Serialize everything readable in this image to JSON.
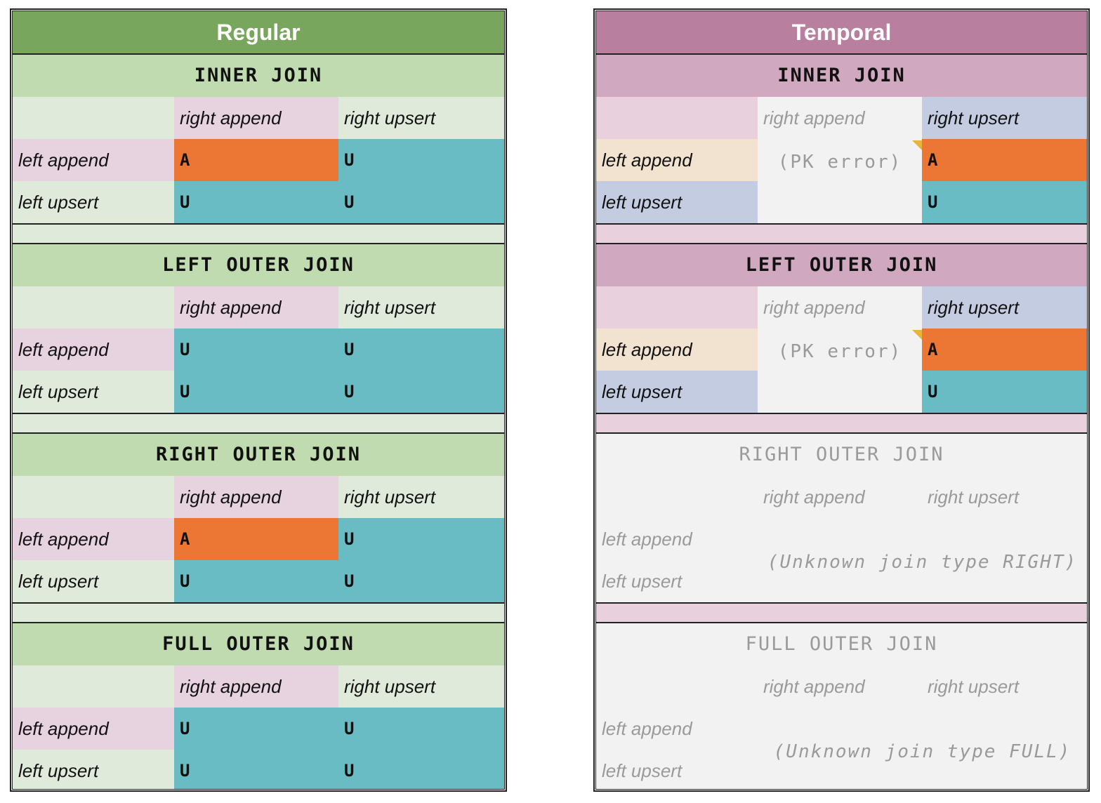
{
  "colors": {
    "regular_title": "#78a65c",
    "regular_section": "#c0dbb0",
    "regular_light": "#dfeadb",
    "pink": "#e6d3df",
    "orange": "#ec7633",
    "teal": "#69bcc4",
    "temporal_title": "#b87f9f",
    "temporal_section": "#d0a9c0",
    "temporal_gap": "#e8d1dd",
    "peach": "#f2e3d0",
    "blue": "#c3cce0",
    "disabled": "#f2f2f2"
  },
  "regular": {
    "title": "Regular",
    "sections": [
      {
        "name": "INNER JOIN",
        "col1": "right append",
        "col2": "right upsert",
        "row1": "left append",
        "row2": "left upsert",
        "cells": [
          "A",
          "U",
          "U",
          "U"
        ]
      },
      {
        "name": "LEFT OUTER JOIN",
        "col1": "right append",
        "col2": "right upsert",
        "row1": "left append",
        "row2": "left upsert",
        "cells": [
          "U",
          "U",
          "U",
          "U"
        ]
      },
      {
        "name": "RIGHT OUTER JOIN",
        "col1": "right append",
        "col2": "right upsert",
        "row1": "left append",
        "row2": "left upsert",
        "cells": [
          "A",
          "U",
          "U",
          "U"
        ]
      },
      {
        "name": "FULL OUTER JOIN",
        "col1": "right append",
        "col2": "right upsert",
        "row1": "left append",
        "row2": "left upsert",
        "cells": [
          "U",
          "U",
          "U",
          "U"
        ]
      }
    ]
  },
  "temporal": {
    "title": "Temporal",
    "sections": [
      {
        "name": "INNER JOIN",
        "col1": "right append",
        "col2": "right upsert",
        "row1": "left append",
        "row2": "left upsert",
        "error": "(PK error)",
        "cells": [
          "A",
          "U"
        ]
      },
      {
        "name": "LEFT OUTER JOIN",
        "col1": "right append",
        "col2": "right upsert",
        "row1": "left append",
        "row2": "left upsert",
        "error": "(PK error)",
        "cells": [
          "A",
          "U"
        ]
      },
      {
        "name": "RIGHT OUTER JOIN",
        "col1": "right append",
        "col2": "right upsert",
        "row1": "left append",
        "row2": "left upsert",
        "error": "(Unknown join type RIGHT)"
      },
      {
        "name": "FULL OUTER JOIN",
        "col1": "right append",
        "col2": "right upsert",
        "row1": "left append",
        "row2": "left upsert",
        "error": "(Unknown join type FULL)"
      }
    ]
  }
}
